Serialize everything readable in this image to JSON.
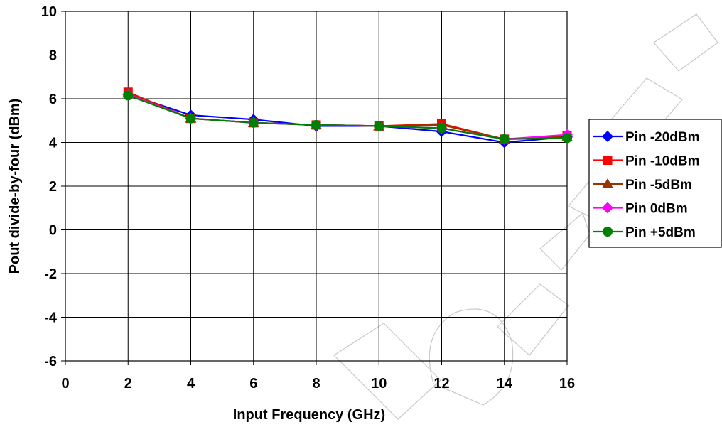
{
  "chart_data": {
    "type": "line",
    "title": "",
    "xlabel": "Input Frequency (GHz)",
    "ylabel": "Pout divide-by-four (dBm)",
    "xlim": [
      0,
      16
    ],
    "ylim": [
      -6,
      10
    ],
    "xticks": [
      "0",
      "2",
      "4",
      "6",
      "8",
      "10",
      "12",
      "14",
      "16"
    ],
    "yticks": [
      "10",
      "8",
      "6",
      "4",
      "2",
      "0",
      "-2",
      "-4",
      "-6"
    ],
    "grid": true,
    "legend_position": "right",
    "x": [
      2,
      4,
      6,
      8,
      10,
      12,
      14,
      16
    ],
    "series": [
      {
        "name": "Pin -20dBm",
        "color": "#0000FF",
        "marker": "diamond",
        "values": [
          6.2,
          5.25,
          5.05,
          4.75,
          4.75,
          4.5,
          4.0,
          4.25
        ]
      },
      {
        "name": "Pin -10dBm",
        "color": "#FF0000",
        "marker": "square",
        "values": [
          6.3,
          5.1,
          4.9,
          4.8,
          4.75,
          4.85,
          4.15,
          4.3
        ]
      },
      {
        "name": "Pin -5dBm",
        "color": "#993300",
        "marker": "triangle",
        "values": [
          6.25,
          5.1,
          4.9,
          4.8,
          4.75,
          4.8,
          4.15,
          4.25
        ]
      },
      {
        "name": "Pin 0dBm",
        "color": "#FF00FF",
        "marker": "diamond",
        "values": [
          6.2,
          5.1,
          4.9,
          4.8,
          4.75,
          4.65,
          4.15,
          4.35
        ]
      },
      {
        "name": "Pin +5dBm",
        "color": "#008000",
        "marker": "circle",
        "values": [
          6.15,
          5.1,
          4.9,
          4.8,
          4.75,
          4.65,
          4.15,
          4.2
        ]
      }
    ]
  }
}
